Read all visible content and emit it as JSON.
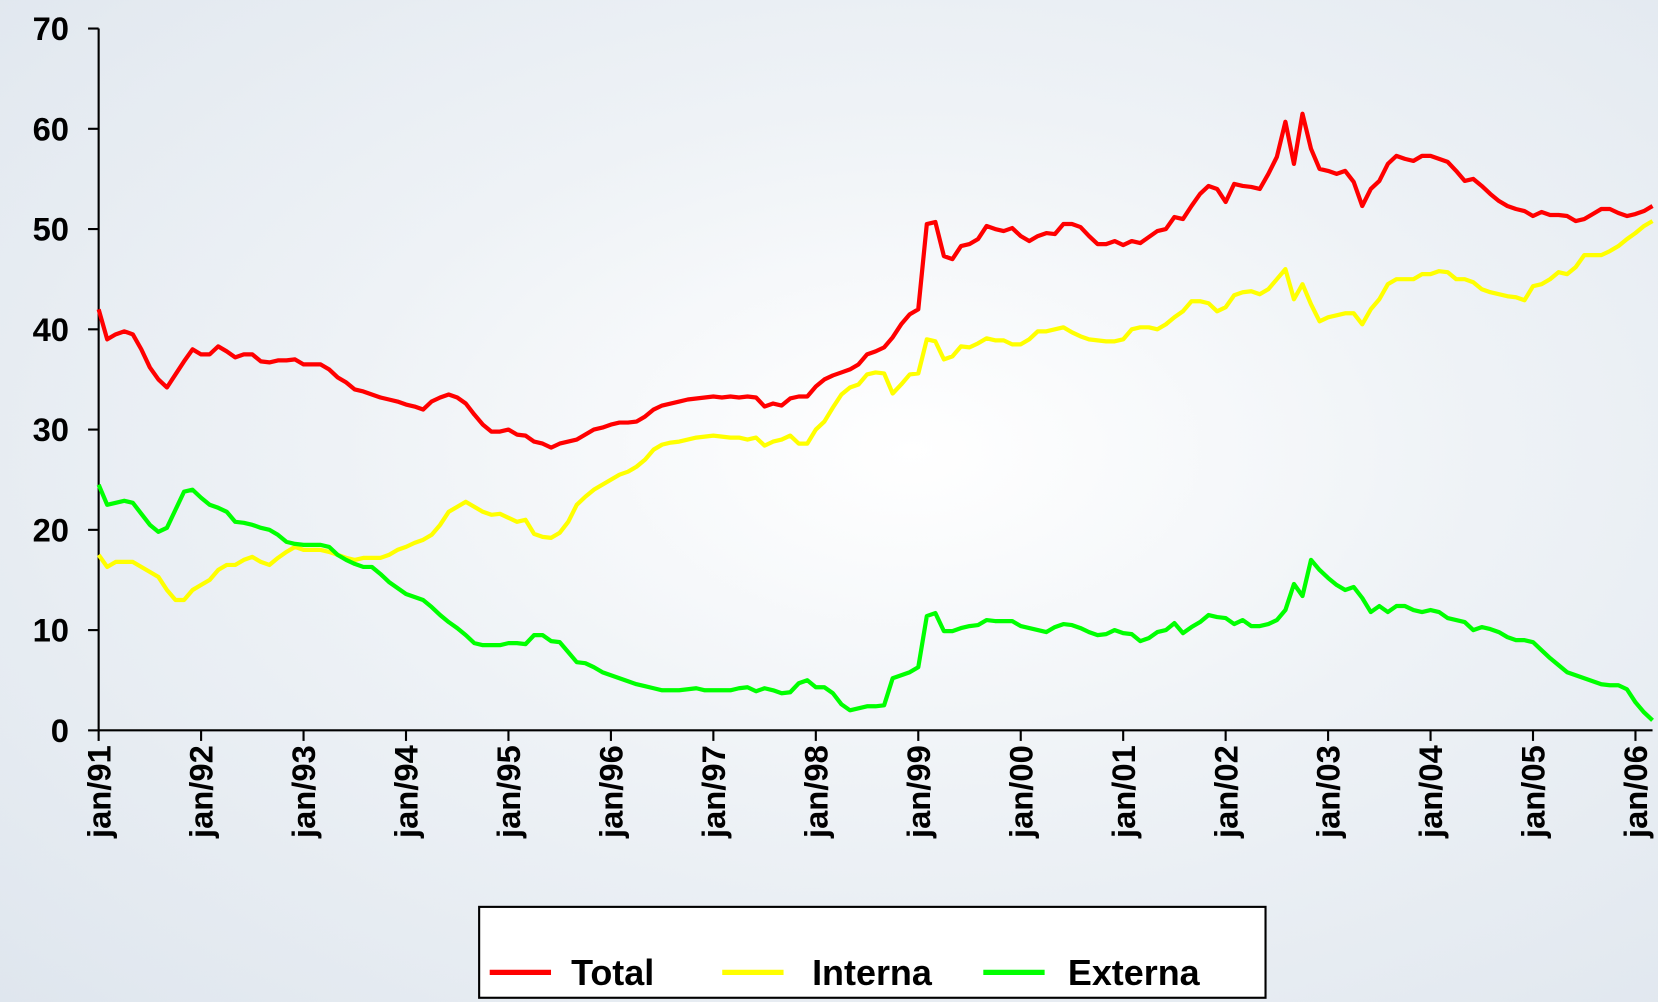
{
  "chart_data": {
    "type": "line",
    "categories": [
      "jan/91",
      null,
      null,
      null,
      null,
      null,
      null,
      null,
      null,
      null,
      null,
      null,
      "jan/92",
      null,
      null,
      null,
      null,
      null,
      null,
      null,
      null,
      null,
      null,
      null,
      "jan/93",
      null,
      null,
      null,
      null,
      null,
      null,
      null,
      null,
      null,
      null,
      null,
      "jan/94",
      null,
      null,
      null,
      null,
      null,
      null,
      null,
      null,
      null,
      null,
      null,
      "jan/95",
      null,
      null,
      null,
      null,
      null,
      null,
      null,
      null,
      null,
      null,
      null,
      "jan/96",
      null,
      null,
      null,
      null,
      null,
      null,
      null,
      null,
      null,
      null,
      null,
      "jan/97",
      null,
      null,
      null,
      null,
      null,
      null,
      null,
      null,
      null,
      null,
      null,
      "jan/98",
      null,
      null,
      null,
      null,
      null,
      null,
      null,
      null,
      null,
      null,
      null,
      "jan/99",
      null,
      null,
      null,
      null,
      null,
      null,
      null,
      null,
      null,
      null,
      null,
      "jan/00",
      null,
      null,
      null,
      null,
      null,
      null,
      null,
      null,
      null,
      null,
      null,
      "jan/01",
      null,
      null,
      null,
      null,
      null,
      null,
      null,
      null,
      null,
      null,
      null,
      "jan/02",
      null,
      null,
      null,
      null,
      null,
      null,
      null,
      null,
      null,
      null,
      null,
      "jan/03",
      null,
      null,
      null,
      null,
      null,
      null,
      null,
      null,
      null,
      null,
      null,
      "jan/04",
      null,
      null,
      null,
      null,
      null,
      null,
      null,
      null,
      null,
      null,
      null,
      "jan/05",
      null,
      null,
      null,
      null,
      null,
      null,
      null,
      null,
      null,
      null,
      null,
      "jan/06",
      null,
      null
    ],
    "series": [
      {
        "name": "Total",
        "color": "#ff0000",
        "values": [
          42,
          39,
          39.5,
          39.8,
          39.5,
          38,
          36.2,
          35,
          34.2,
          35.5,
          36.8,
          38,
          37.5,
          37.5,
          38.3,
          37.8,
          37.2,
          37.5,
          37.5,
          36.8,
          36.7,
          36.9,
          36.9,
          37,
          36.5,
          36.5,
          36.5,
          36,
          35.2,
          34.7,
          34,
          33.8,
          33.5,
          33.2,
          33,
          32.8,
          32.5,
          32.3,
          32,
          32.8,
          33.2,
          33.5,
          33.2,
          32.6,
          31.5,
          30.5,
          29.8,
          29.8,
          30,
          29.5,
          29.4,
          28.8,
          28.6,
          28.2,
          28.6,
          28.8,
          29,
          29.5,
          30,
          30.2,
          30.5,
          30.7,
          30.7,
          30.8,
          31.3,
          32,
          32.4,
          32.6,
          32.8,
          33,
          33.1,
          33.2,
          33.3,
          33.2,
          33.3,
          33.2,
          33.3,
          33.2,
          32.3,
          32.6,
          32.4,
          33.1,
          33.3,
          33.3,
          34.3,
          35,
          35.4,
          35.7,
          36,
          36.5,
          37.5,
          37.8,
          38.2,
          39.2,
          40.5,
          41.5,
          42,
          50.5,
          50.7,
          47.3,
          47,
          48.3,
          48.5,
          49,
          50.3,
          50,
          49.8,
          50.1,
          49.3,
          48.8,
          49.3,
          49.6,
          49.5,
          50.5,
          50.5,
          50.2,
          49.3,
          48.5,
          48.5,
          48.8,
          48.4,
          48.8,
          48.6,
          49.2,
          49.8,
          50,
          51.2,
          51,
          52.3,
          53.5,
          54.3,
          54,
          52.7,
          54.5,
          54.3,
          54.2,
          54,
          55.5,
          57.2,
          60.7,
          56.5,
          61.5,
          58,
          56,
          55.8,
          55.5,
          55.8,
          54.7,
          52.3,
          54,
          54.8,
          56.5,
          57.3,
          57,
          56.8,
          57.3,
          57.3,
          57,
          56.7,
          55.8,
          54.8,
          55,
          54.3,
          53.5,
          52.8,
          52.3,
          52,
          51.8,
          51.3,
          51.7,
          51.4,
          51.4,
          51.3,
          50.8,
          51,
          51.5,
          52,
          52,
          51.6,
          51.3,
          51.5,
          51.8,
          52.3
        ]
      },
      {
        "name": "Interna",
        "color": "#ffff00",
        "values": [
          17.5,
          16.3,
          16.8,
          16.8,
          16.8,
          16.3,
          15.8,
          15.3,
          14,
          13,
          13,
          14,
          14.5,
          15,
          16,
          16.5,
          16.5,
          17,
          17.3,
          16.8,
          16.5,
          17.2,
          17.8,
          18.3,
          18,
          18,
          18,
          17.8,
          17.5,
          17.2,
          17,
          17.2,
          17.2,
          17.2,
          17.5,
          18,
          18.3,
          18.7,
          19,
          19.5,
          20.5,
          21.8,
          22.3,
          22.8,
          22.3,
          21.8,
          21.5,
          21.6,
          21.2,
          20.8,
          21,
          19.6,
          19.3,
          19.2,
          19.7,
          20.8,
          22.5,
          23.3,
          24,
          24.5,
          25,
          25.5,
          25.8,
          26.3,
          27,
          28,
          28.5,
          28.7,
          28.8,
          29,
          29.2,
          29.3,
          29.4,
          29.3,
          29.2,
          29.2,
          29,
          29.2,
          28.4,
          28.8,
          29,
          29.4,
          28.6,
          28.6,
          30,
          30.8,
          32.2,
          33.5,
          34.2,
          34.5,
          35.5,
          35.7,
          35.6,
          33.6,
          34.5,
          35.5,
          35.6,
          39,
          38.8,
          37,
          37.3,
          38.3,
          38.2,
          38.6,
          39.1,
          38.9,
          38.9,
          38.5,
          38.5,
          39,
          39.8,
          39.8,
          40,
          40.2,
          39.7,
          39.3,
          39,
          38.9,
          38.8,
          38.8,
          39,
          40,
          40.2,
          40.2,
          40,
          40.5,
          41.2,
          41.8,
          42.8,
          42.8,
          42.6,
          41.8,
          42.2,
          43.4,
          43.7,
          43.8,
          43.5,
          44,
          45,
          46,
          43,
          44.5,
          42.5,
          40.8,
          41.2,
          41.4,
          41.6,
          41.6,
          40.5,
          42,
          43,
          44.5,
          45,
          45,
          45,
          45.5,
          45.5,
          45.8,
          45.7,
          45,
          45,
          44.7,
          44,
          43.7,
          43.5,
          43.3,
          43.2,
          42.9,
          44.3,
          44.5,
          45,
          45.7,
          45.5,
          46.2,
          47.4,
          47.4,
          47.4,
          47.8,
          48.3,
          49,
          49.6,
          50.3,
          50.8
        ]
      },
      {
        "name": "Externa",
        "color": "#00ff00",
        "values": [
          24.5,
          22.5,
          22.7,
          22.9,
          22.7,
          21.6,
          20.5,
          19.8,
          20.2,
          22,
          23.8,
          24,
          23.2,
          22.5,
          22.2,
          21.8,
          20.8,
          20.7,
          20.5,
          20.2,
          20,
          19.5,
          18.8,
          18.6,
          18.5,
          18.5,
          18.5,
          18.3,
          17.5,
          17,
          16.6,
          16.3,
          16.3,
          15.6,
          14.8,
          14.2,
          13.6,
          13.3,
          13,
          12.3,
          11.5,
          10.8,
          10.2,
          9.5,
          8.7,
          8.5,
          8.5,
          8.5,
          8.7,
          8.7,
          8.6,
          9.5,
          9.5,
          8.9,
          8.8,
          7.8,
          6.8,
          6.7,
          6.3,
          5.8,
          5.5,
          5.2,
          4.9,
          4.6,
          4.4,
          4.2,
          4,
          4,
          4,
          4.1,
          4.2,
          4,
          4,
          4,
          4,
          4.2,
          4.3,
          3.9,
          4.2,
          4,
          3.7,
          3.8,
          4.7,
          5,
          4.3,
          4.3,
          3.7,
          2.6,
          2,
          2.2,
          2.4,
          2.4,
          2.5,
          5.2,
          5.5,
          5.8,
          6.3,
          11.4,
          11.7,
          9.9,
          9.9,
          10.2,
          10.4,
          10.5,
          11,
          10.9,
          10.9,
          10.9,
          10.4,
          10.2,
          10,
          9.8,
          10.3,
          10.6,
          10.5,
          10.2,
          9.8,
          9.5,
          9.6,
          10,
          9.7,
          9.6,
          8.9,
          9.2,
          9.8,
          10,
          10.7,
          9.7,
          10.3,
          10.8,
          11.5,
          11.3,
          11.2,
          10.6,
          11,
          10.4,
          10.4,
          10.6,
          11,
          12,
          14.6,
          13.4,
          17,
          16,
          15.2,
          14.5,
          14,
          14.3,
          13.2,
          11.8,
          12.4,
          11.8,
          12.4,
          12.4,
          12,
          11.8,
          12,
          11.8,
          11.2,
          11,
          10.8,
          10,
          10.3,
          10.1,
          9.8,
          9.3,
          9,
          9,
          8.8,
          8,
          7.2,
          6.5,
          5.8,
          5.5,
          5.2,
          4.9,
          4.6,
          4.5,
          4.5,
          4.1,
          2.8,
          1.8,
          1
        ]
      }
    ],
    "ylim": [
      0,
      70
    ],
    "yticks": [
      0,
      10,
      20,
      30,
      40,
      50,
      60,
      70
    ],
    "grid": false,
    "legend": "bottom"
  }
}
